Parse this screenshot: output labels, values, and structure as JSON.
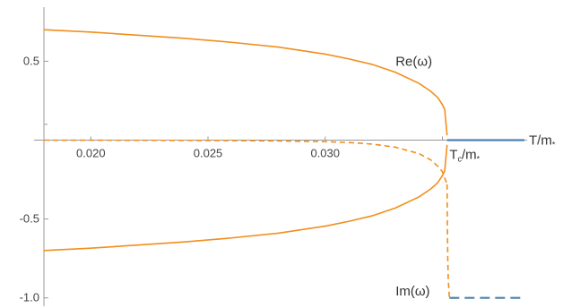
{
  "chart_data": {
    "type": "line",
    "title": "",
    "xlabel": "T/m",
    "xlabel_subscript": "*",
    "ylabel": "",
    "xlim": [
      0.018,
      0.0385
    ],
    "ylim": [
      -1.03,
      0.82
    ],
    "grid": false,
    "xticks": [
      {
        "value": 0.02,
        "label": "0.020"
      },
      {
        "value": 0.025,
        "label": "0.025"
      },
      {
        "value": 0.03,
        "label": "0.030"
      }
    ],
    "xticks_minor": [
      0.035
    ],
    "yticks": [
      {
        "value": 0.5,
        "label": "0.5"
      },
      {
        "value": -0.5,
        "label": "-0.5"
      },
      {
        "value": -1.0,
        "label": "-1.0"
      }
    ],
    "yticks_minor": [
      0.1
    ],
    "tc": 0.0352,
    "annotations": [
      {
        "text": "Re(ω)",
        "x": 0.033,
        "y": 0.47
      },
      {
        "text": "Im(ω)",
        "x": 0.033,
        "y": -0.985
      },
      {
        "text": "T",
        "sub": "c",
        "text2": "/m",
        "sub2": "*",
        "x": 0.0353,
        "y": -0.12
      }
    ],
    "series": [
      {
        "role": "re-positive",
        "color": "#f28e1c",
        "dash": "solid",
        "x": [
          0.018,
          0.02,
          0.022,
          0.024,
          0.026,
          0.028,
          0.03,
          0.031,
          0.032,
          0.033,
          0.034,
          0.0345,
          0.0348,
          0.035,
          0.0351,
          0.0352
        ],
        "y": [
          0.7,
          0.685,
          0.665,
          0.645,
          0.62,
          0.59,
          0.545,
          0.515,
          0.48,
          0.43,
          0.36,
          0.31,
          0.27,
          0.225,
          0.195,
          0.03
        ]
      },
      {
        "role": "re-negative",
        "color": "#f28e1c",
        "dash": "solid",
        "x": [
          0.018,
          0.02,
          0.022,
          0.024,
          0.026,
          0.028,
          0.03,
          0.031,
          0.032,
          0.033,
          0.034,
          0.0345,
          0.0348,
          0.035,
          0.0351,
          0.0352
        ],
        "y": [
          -0.7,
          -0.685,
          -0.665,
          -0.645,
          -0.62,
          -0.59,
          -0.545,
          -0.515,
          -0.48,
          -0.43,
          -0.36,
          -0.31,
          -0.27,
          -0.225,
          -0.195,
          -0.03
        ]
      },
      {
        "role": "im-upper",
        "color": "#f28e1c",
        "dash": "dashed",
        "x": [
          0.018,
          0.022,
          0.026,
          0.028,
          0.03,
          0.031,
          0.032,
          0.033,
          0.034,
          0.0345,
          0.0348,
          0.035,
          0.0352
        ],
        "y": [
          0.0,
          -0.001,
          -0.003,
          -0.005,
          -0.01,
          -0.015,
          -0.025,
          -0.045,
          -0.085,
          -0.125,
          -0.165,
          -0.2,
          -0.28
        ]
      },
      {
        "role": "im-lower",
        "color": "#f28e1c",
        "dash": "dashed",
        "x": [
          0.0352,
          0.03521,
          0.03523,
          0.03525,
          0.03528,
          0.0353
        ],
        "y": [
          -0.28,
          -0.5,
          -0.75,
          -0.88,
          -0.96,
          -1.0
        ]
      },
      {
        "role": "re-above-tc",
        "color": "#4f81aa",
        "dash": "solid",
        "x": [
          0.0352,
          0.0385
        ],
        "y": [
          0.0,
          0.0
        ]
      },
      {
        "role": "im-above-tc",
        "color": "#4f81aa",
        "dash": "dashed",
        "x": [
          0.0353,
          0.0385
        ],
        "y": [
          -1.0,
          -1.0
        ]
      }
    ]
  }
}
